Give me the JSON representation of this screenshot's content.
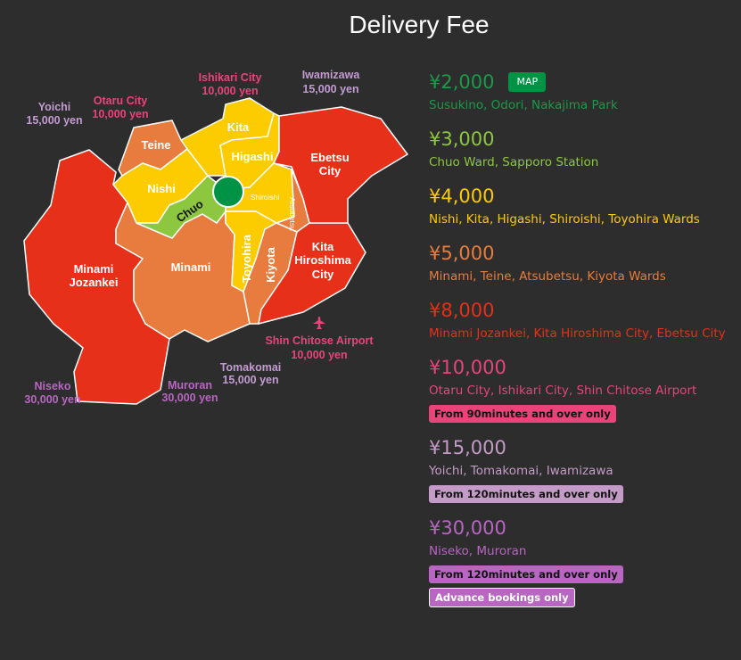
{
  "title": "Delivery Fee",
  "colors": {
    "red": "#e63019",
    "orange": "#e87c3e",
    "yellow": "#fccc00",
    "green": "#8dc63f",
    "center": "#009245",
    "pink": "#e9447a",
    "lavender": "#c39bd3",
    "purple": "#b866c2"
  },
  "map": {
    "districts": {
      "kita": "Kita",
      "higashi": "Higashi",
      "teine": "Teine",
      "nishi": "Nishi",
      "chuo": "Chuo",
      "shiroishi": "Shiroishi",
      "atsubetsu": "Atsubetsu",
      "toyohira": "Toyohira",
      "kiyota": "Kiyota",
      "minami": "Minami",
      "minami_jozankei_1": "Minami",
      "minami_jozankei_2": "Jozankei",
      "ebetsu_1": "Ebetsu",
      "ebetsu_2": "City",
      "kitahiroshima_1": "Kita",
      "kitahiroshima_2": "Hiroshima",
      "kitahiroshima_3": "City"
    },
    "outer": [
      {
        "name": "Yoichi",
        "fee": "15,000 yen"
      },
      {
        "name": "Otaru City",
        "fee": "10,000 yen"
      },
      {
        "name": "Ishikari City",
        "fee": "10,000 yen"
      },
      {
        "name": "Iwamizawa",
        "fee": "15,000 yen"
      },
      {
        "name": "Shin Chitose Airport",
        "fee": "10,000 yen"
      },
      {
        "name": "Tomakomai",
        "fee": "15,000 yen"
      },
      {
        "name": "Muroran",
        "fee": "30,000 yen"
      },
      {
        "name": "Niseko",
        "fee": "30,000 yen"
      }
    ],
    "airport_icon": "airplane-icon"
  },
  "fees": [
    {
      "price": "¥2,000",
      "areas": "Susukino, Odori, Nakajima Park",
      "color": "#1a9a4a",
      "button": "MAP"
    },
    {
      "price": "¥3,000",
      "areas": "Chuo Ward, Sapporo Station",
      "color": "#8dc63f"
    },
    {
      "price": "¥4,000",
      "areas": "Nishi, Kita, Higashi, Shiroishi, Toyohira Wards",
      "color": "#fccc00"
    },
    {
      "price": "¥5,000",
      "areas": "Minami, Teine, Atsubetsu, Kiyota Wards",
      "color": "#e87c3e"
    },
    {
      "price": "¥8,000",
      "areas": "Minami Jozankei, Kita Hiroshima City, Ebetsu City",
      "color": "#e63019"
    },
    {
      "price": "¥10,000",
      "areas": "Otaru City, Ishikari City, Shin Chitose Airport",
      "color": "#e9447a",
      "note": "From 90minutes and over only"
    },
    {
      "price": "¥15,000",
      "areas": "Yoichi, Tomakomai, Iwamizawa",
      "color": "#c49ac6",
      "note": "From 120minutes and over only"
    },
    {
      "price": "¥30,000",
      "areas": "Niseko, Muroran",
      "color": "#b866c2",
      "note": "From 120minutes and over only",
      "note2": "Advance bookings only"
    }
  ]
}
